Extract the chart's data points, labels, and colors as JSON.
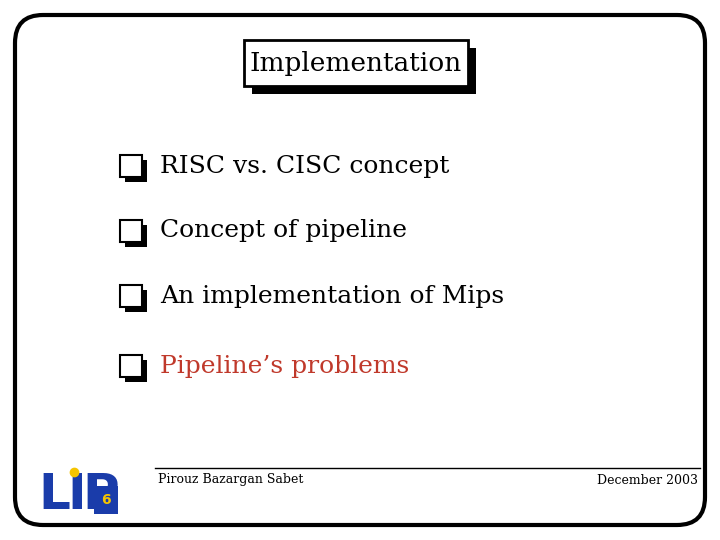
{
  "title": "Implementation",
  "bullet_items": [
    {
      "text": "RISC vs. CISC concept",
      "color": "#000000"
    },
    {
      "text": "Concept of pipeline",
      "color": "#000000"
    },
    {
      "text": "An implementation of Mips",
      "color": "#000000"
    },
    {
      "text": "Pipeline’s problems",
      "color": "#c0392b"
    }
  ],
  "footer_left": "Pirouz Bazargan Sabet",
  "footer_right": "December 2003",
  "bg_color": "#ffffff",
  "border_color": "#000000",
  "lip_blue": "#1a3caa",
  "lip_yellow": "#f5c400",
  "lip_number": "6"
}
